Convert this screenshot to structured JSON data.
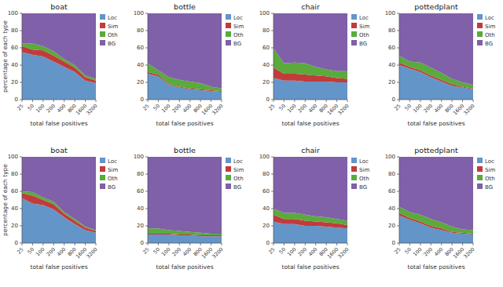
{
  "chart_data": [
    {
      "type": "area",
      "stacked": true,
      "title": "boat",
      "x_label": "total false positives",
      "y_label": "percentage of each type",
      "categories": [
        "25",
        "50",
        "100",
        "200",
        "400",
        "800",
        "1600",
        "3200"
      ],
      "series": [
        {
          "name": "Loc",
          "color": "#6495c8",
          "values": [
            55,
            52,
            50,
            44,
            38,
            32,
            22,
            19
          ]
        },
        {
          "name": "Sim",
          "color": "#c23b3b",
          "values": [
            7,
            6,
            7,
            7,
            6,
            5,
            4,
            3
          ]
        },
        {
          "name": "Oth",
          "color": "#5aaa3c",
          "values": [
            3,
            7,
            5,
            5,
            3,
            3,
            2,
            2
          ]
        },
        {
          "name": "BG",
          "color": "#8060a8",
          "values": [
            35,
            35,
            38,
            44,
            53,
            60,
            72,
            76
          ]
        }
      ],
      "ylim": [
        0,
        100
      ],
      "yticks": [
        0,
        20,
        40,
        60,
        80,
        100
      ],
      "legend": "right",
      "grid": false
    },
    {
      "type": "area",
      "stacked": true,
      "title": "bottle",
      "x_label": "total false positives",
      "categories": [
        "25",
        "50",
        "100",
        "200",
        "400",
        "800",
        "1600",
        "3200"
      ],
      "series": [
        {
          "name": "Loc",
          "color": "#6495c8",
          "values": [
            30,
            27,
            17,
            14,
            12,
            11,
            10,
            9
          ]
        },
        {
          "name": "Sim",
          "color": "#c23b3b",
          "values": [
            2,
            2,
            1,
            1,
            1,
            1,
            1,
            1
          ]
        },
        {
          "name": "Oth",
          "color": "#5aaa3c",
          "values": [
            10,
            5,
            8,
            8,
            8,
            7,
            4,
            3
          ]
        },
        {
          "name": "BG",
          "color": "#8060a8",
          "values": [
            58,
            66,
            74,
            77,
            79,
            81,
            85,
            87
          ]
        }
      ],
      "ylim": [
        0,
        100
      ],
      "yticks": [
        0,
        20,
        40,
        60,
        80,
        100
      ],
      "legend": "right",
      "grid": false
    },
    {
      "type": "area",
      "stacked": true,
      "title": "chair",
      "x_label": "total false positives",
      "categories": [
        "25",
        "50",
        "100",
        "200",
        "400",
        "800",
        "1600",
        "3200"
      ],
      "series": [
        {
          "name": "Loc",
          "color": "#6495c8",
          "values": [
            25,
            22,
            22,
            21,
            21,
            21,
            20,
            20
          ]
        },
        {
          "name": "Sim",
          "color": "#c23b3b",
          "values": [
            12,
            8,
            8,
            8,
            7,
            6,
            5,
            4
          ]
        },
        {
          "name": "Oth",
          "color": "#5aaa3c",
          "values": [
            22,
            12,
            13,
            13,
            10,
            8,
            8,
            9
          ]
        },
        {
          "name": "BG",
          "color": "#8060a8",
          "values": [
            41,
            58,
            57,
            58,
            62,
            65,
            67,
            67
          ]
        }
      ],
      "ylim": [
        0,
        100
      ],
      "yticks": [
        0,
        20,
        40,
        60,
        80,
        100
      ],
      "legend": "right",
      "grid": false
    },
    {
      "type": "area",
      "stacked": true,
      "title": "pottedplant",
      "x_label": "total false positives",
      "categories": [
        "25",
        "50",
        "100",
        "200",
        "400",
        "800",
        "1600",
        "3200"
      ],
      "series": [
        {
          "name": "Loc",
          "color": "#6495c8",
          "values": [
            40,
            36,
            32,
            26,
            21,
            16,
            14,
            12
          ]
        },
        {
          "name": "Sim",
          "color": "#c23b3b",
          "values": [
            3,
            2,
            2,
            2,
            2,
            2,
            1,
            1
          ]
        },
        {
          "name": "Oth",
          "color": "#5aaa3c",
          "values": [
            8,
            6,
            9,
            9,
            8,
            6,
            5,
            4
          ]
        },
        {
          "name": "BG",
          "color": "#8060a8",
          "values": [
            49,
            56,
            57,
            63,
            69,
            76,
            80,
            83
          ]
        }
      ],
      "ylim": [
        0,
        100
      ],
      "yticks": [
        0,
        20,
        40,
        60,
        80,
        100
      ],
      "legend": "right",
      "grid": false
    },
    {
      "type": "area",
      "stacked": true,
      "title": "boat",
      "x_label": "total false positives",
      "y_label": "percentage of each type",
      "categories": [
        "25",
        "50",
        "100",
        "200",
        "400",
        "800",
        "1600",
        "3200"
      ],
      "series": [
        {
          "name": "Loc",
          "color": "#6495c8",
          "values": [
            52,
            46,
            44,
            39,
            30,
            22,
            15,
            12
          ]
        },
        {
          "name": "Sim",
          "color": "#c23b3b",
          "values": [
            6,
            9,
            6,
            6,
            4,
            4,
            3,
            2
          ]
        },
        {
          "name": "Oth",
          "color": "#5aaa3c",
          "values": [
            2,
            4,
            3,
            3,
            2,
            2,
            1,
            1
          ]
        },
        {
          "name": "BG",
          "color": "#8060a8",
          "values": [
            40,
            41,
            47,
            52,
            64,
            72,
            81,
            85
          ]
        }
      ],
      "ylim": [
        0,
        100
      ],
      "yticks": [
        0,
        20,
        40,
        60,
        80,
        100
      ],
      "legend": "right",
      "grid": false
    },
    {
      "type": "area",
      "stacked": true,
      "title": "bottle",
      "x_label": "total false positives",
      "categories": [
        "25",
        "50",
        "100",
        "200",
        "400",
        "800",
        "1600",
        "3200"
      ],
      "series": [
        {
          "name": "Loc",
          "color": "#6495c8",
          "values": [
            10,
            10,
            10,
            9,
            9,
            8,
            8,
            8
          ]
        },
        {
          "name": "Sim",
          "color": "#c23b3b",
          "values": [
            1,
            1,
            1,
            1,
            1,
            1,
            1,
            1
          ]
        },
        {
          "name": "Oth",
          "color": "#5aaa3c",
          "values": [
            6,
            6,
            4,
            4,
            3,
            3,
            2,
            2
          ]
        },
        {
          "name": "BG",
          "color": "#8060a8",
          "values": [
            83,
            83,
            85,
            86,
            87,
            88,
            89,
            89
          ]
        }
      ],
      "ylim": [
        0,
        100
      ],
      "yticks": [
        0,
        20,
        40,
        60,
        80,
        100
      ],
      "legend": "right",
      "grid": false
    },
    {
      "type": "area",
      "stacked": true,
      "title": "chair",
      "x_label": "total false positives",
      "categories": [
        "25",
        "50",
        "100",
        "200",
        "400",
        "800",
        "1600",
        "3200"
      ],
      "series": [
        {
          "name": "Loc",
          "color": "#6495c8",
          "values": [
            25,
            22,
            22,
            20,
            20,
            19,
            18,
            17
          ]
        },
        {
          "name": "Sim",
          "color": "#c23b3b",
          "values": [
            8,
            6,
            6,
            6,
            5,
            5,
            5,
            4
          ]
        },
        {
          "name": "Oth",
          "color": "#5aaa3c",
          "values": [
            7,
            7,
            7,
            7,
            6,
            6,
            5,
            5
          ]
        },
        {
          "name": "BG",
          "color": "#8060a8",
          "values": [
            60,
            65,
            65,
            67,
            69,
            70,
            72,
            74
          ]
        }
      ],
      "ylim": [
        0,
        100
      ],
      "yticks": [
        0,
        20,
        40,
        60,
        80,
        100
      ],
      "legend": "right",
      "grid": false
    },
    {
      "type": "area",
      "stacked": true,
      "title": "pottedplant",
      "x_label": "total false positives",
      "categories": [
        "25",
        "50",
        "100",
        "200",
        "400",
        "800",
        "1600",
        "3200"
      ],
      "series": [
        {
          "name": "Loc",
          "color": "#6495c8",
          "values": [
            32,
            27,
            23,
            18,
            15,
            12,
            11,
            10
          ]
        },
        {
          "name": "Sim",
          "color": "#c23b3b",
          "values": [
            3,
            2,
            2,
            2,
            2,
            1,
            1,
            1
          ]
        },
        {
          "name": "Oth",
          "color": "#5aaa3c",
          "values": [
            7,
            7,
            8,
            8,
            7,
            6,
            4,
            4
          ]
        },
        {
          "name": "BG",
          "color": "#8060a8",
          "values": [
            58,
            64,
            67,
            72,
            76,
            81,
            84,
            85
          ]
        }
      ],
      "ylim": [
        0,
        100
      ],
      "yticks": [
        0,
        20,
        40,
        60,
        80,
        100
      ],
      "legend": "right",
      "grid": false
    }
  ]
}
